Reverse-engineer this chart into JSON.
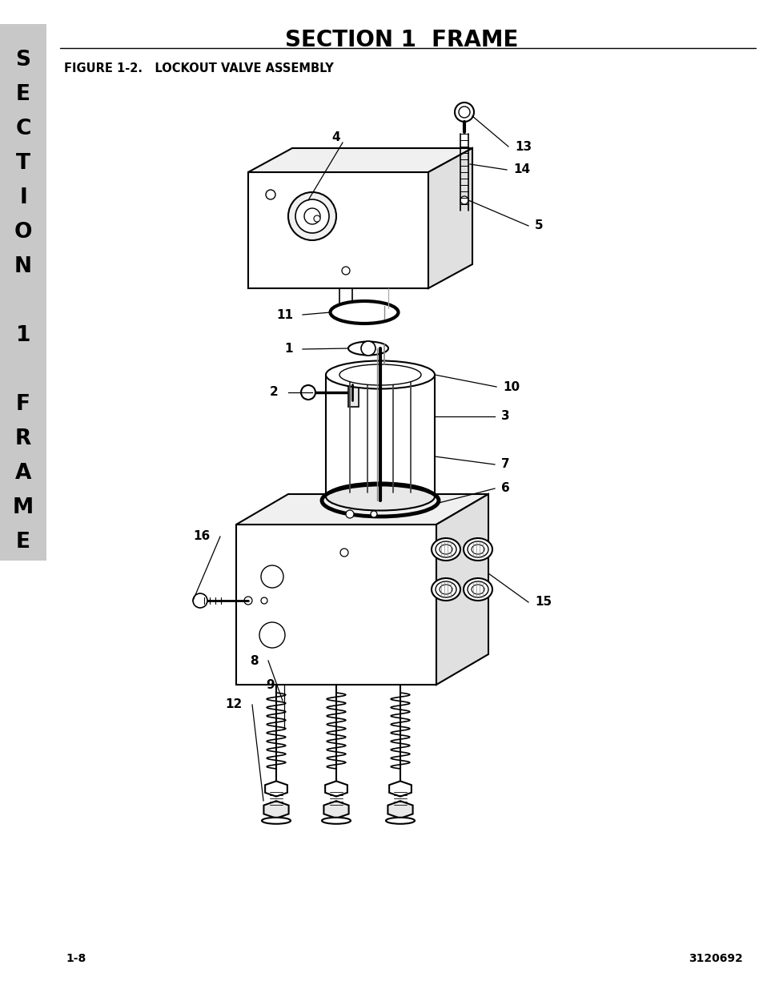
{
  "title": "SECTION 1  FRAME",
  "figure_label": "FIGURE 1-2.   LOCKOUT VALVE ASSEMBLY",
  "page_number": "1-8",
  "doc_number": "3120692",
  "sidebar_chars": [
    "S",
    "E",
    "C",
    "T",
    "I",
    "O",
    "N",
    "",
    "1",
    "",
    "F",
    "R",
    "A",
    "M",
    "E"
  ],
  "sidebar_bg": "#c8c8c8",
  "bg_color": "#ffffff",
  "title_fontsize": 20,
  "figure_label_fontsize": 10.5,
  "footer_fontsize": 10,
  "sidebar_char_fontsize": 19,
  "label_fontsize": 11
}
